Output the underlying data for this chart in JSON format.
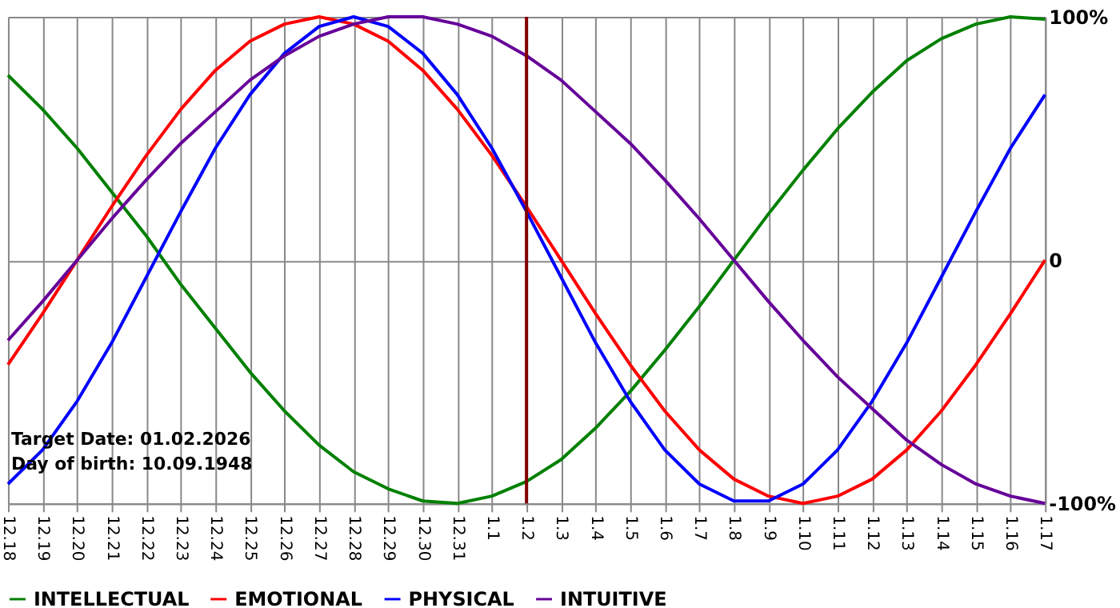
{
  "chart_data": {
    "type": "line",
    "categories": [
      "12.18",
      "12.19",
      "12.20",
      "12.21",
      "12.22",
      "12.23",
      "12.24",
      "12.25",
      "12.26",
      "12.27",
      "12.28",
      "12.29",
      "12.30",
      "12.31",
      "1.1",
      "1.2",
      "1.3",
      "1.4",
      "1.5",
      "1.6",
      "1.7",
      "1.8",
      "1.9",
      "1.10",
      "1.11",
      "1.12",
      "1.13",
      "1.14",
      "1.15",
      "1.16",
      "1.17"
    ],
    "series": [
      {
        "name": "INTELLECTUAL",
        "color": "#008000",
        "values": [
          76,
          62,
          46,
          28,
          10,
          -10,
          -28,
          -46,
          -62,
          -76,
          -87,
          -94,
          -99,
          -100,
          -97,
          -91,
          -82,
          -69,
          -54,
          -37,
          -19,
          0,
          19,
          37,
          54,
          69,
          82,
          91,
          97,
          100,
          99
        ]
      },
      {
        "name": "EMOTIONAL",
        "color": "#ff0000",
        "values": [
          -43,
          -22,
          0,
          22,
          43,
          62,
          78,
          90,
          97,
          100,
          97,
          90,
          78,
          62,
          43,
          22,
          0,
          -22,
          -43,
          -62,
          -78,
          -90,
          -97,
          -100,
          -97,
          -90,
          -78,
          -62,
          -43,
          -22,
          0
        ]
      },
      {
        "name": "PHYSICAL",
        "color": "#0000ff",
        "values": [
          -92,
          -78,
          -58,
          -34,
          -7,
          20,
          46,
          68,
          85,
          96,
          100,
          96,
          85,
          68,
          46,
          20,
          -7,
          -34,
          -58,
          -78,
          -92,
          -99,
          -99,
          -92,
          -78,
          -58,
          -34,
          -7,
          20,
          46,
          68
        ]
      },
      {
        "name": "INTUITIVE",
        "color": "#660099",
        "values": [
          -33,
          -17,
          0,
          17,
          33,
          48,
          61,
          74,
          84,
          92,
          97,
          100,
          100,
          97,
          92,
          84,
          74,
          61,
          48,
          33,
          17,
          0,
          -17,
          -33,
          -48,
          -61,
          -74,
          -84,
          -92,
          -97,
          -100
        ]
      }
    ],
    "ylim": [
      -100,
      100
    ],
    "yticks": [
      {
        "value": -100,
        "label": "-100%"
      },
      0,
      {
        "value": 100,
        "label": "100%"
      }
    ],
    "ref_lines": [
      {
        "axis": "x",
        "value": "1.2",
        "color": "#800000"
      }
    ],
    "annotations": [
      "Target Date: 01.02.2026",
      "Day of birth: 10.09.1948"
    ],
    "grid": true,
    "legend": "bottom left",
    "line_style": "solid",
    "marker": "none"
  }
}
